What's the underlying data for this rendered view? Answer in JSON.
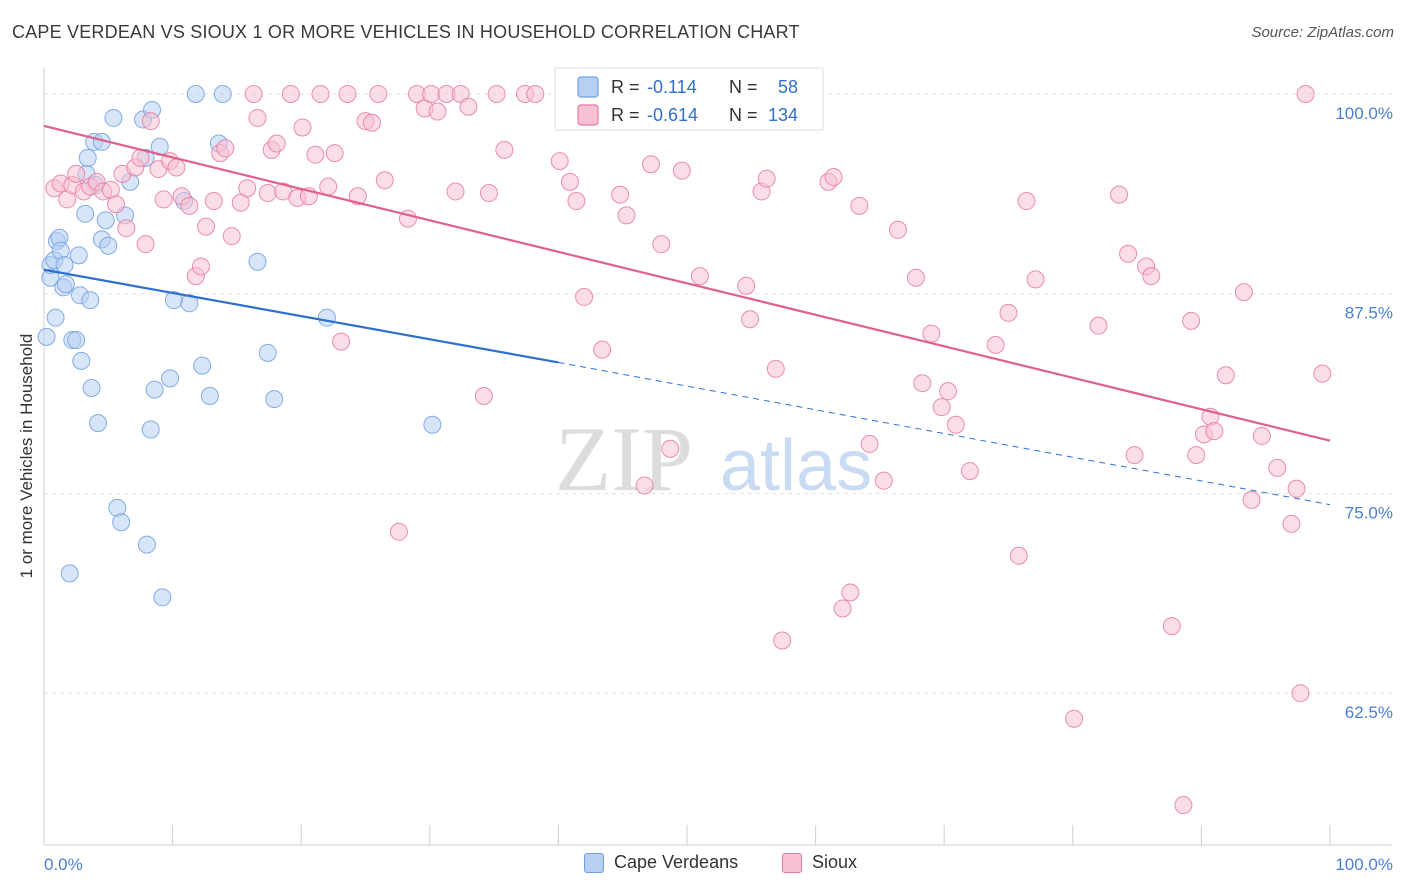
{
  "title": "CAPE VERDEAN VS SIOUX 1 OR MORE VEHICLES IN HOUSEHOLD CORRELATION CHART",
  "source": "Source: ZipAtlas.com",
  "watermark": {
    "zip": "ZIP",
    "atlas": "atlas"
  },
  "chart_data": {
    "type": "scatter",
    "xlabel": "",
    "ylabel": "1 or more Vehicles in Household",
    "xlim": [
      0,
      100
    ],
    "ylim": [
      53,
      101.5
    ],
    "x_tick_labels": [
      "0.0%",
      "100.0%"
    ],
    "y_ticks": [
      62.5,
      75.0,
      87.5,
      100.0
    ],
    "y_tick_labels": [
      "62.5%",
      "75.0%",
      "87.5%",
      "100.0%"
    ],
    "grid": true,
    "legend_position": "top-center",
    "series": [
      {
        "name": "Cape Verdeans",
        "color": "#6f9fe0",
        "fill": "#b7d0f2",
        "stats": {
          "r_label": "R =",
          "r": "-0.114",
          "n_label": "N =",
          "n": "58"
        },
        "trend": {
          "x0": 0,
          "y0": 89.0,
          "x1": 40,
          "y1": 83.2,
          "x_dash_end": 100,
          "y_dash_end": 74.3
        },
        "points": [
          [
            0.2,
            84.8
          ],
          [
            0.5,
            88.5
          ],
          [
            0.5,
            89.3
          ],
          [
            0.8,
            89.6
          ],
          [
            0.9,
            86.0
          ],
          [
            1.0,
            90.8
          ],
          [
            1.2,
            91.0
          ],
          [
            1.3,
            90.2
          ],
          [
            1.5,
            87.9
          ],
          [
            1.6,
            89.3
          ],
          [
            1.7,
            88.1
          ],
          [
            2.0,
            70.0
          ],
          [
            2.2,
            84.6
          ],
          [
            2.5,
            84.6
          ],
          [
            2.7,
            89.9
          ],
          [
            2.8,
            87.4
          ],
          [
            2.9,
            83.3
          ],
          [
            3.2,
            92.5
          ],
          [
            3.3,
            95.0
          ],
          [
            3.4,
            96.0
          ],
          [
            3.6,
            87.1
          ],
          [
            3.7,
            81.6
          ],
          [
            3.9,
            97.0
          ],
          [
            4.0,
            94.3
          ],
          [
            4.2,
            79.4
          ],
          [
            4.5,
            90.9
          ],
          [
            4.5,
            97.0
          ],
          [
            4.8,
            92.1
          ],
          [
            5.0,
            90.5
          ],
          [
            5.4,
            98.5
          ],
          [
            5.7,
            74.1
          ],
          [
            6.0,
            73.2
          ],
          [
            6.3,
            92.4
          ],
          [
            6.7,
            94.5
          ],
          [
            7.7,
            98.4
          ],
          [
            7.9,
            96.0
          ],
          [
            8.0,
            71.8
          ],
          [
            8.3,
            79.0
          ],
          [
            8.4,
            99.0
          ],
          [
            8.6,
            81.5
          ],
          [
            9.0,
            96.7
          ],
          [
            9.2,
            68.5
          ],
          [
            9.8,
            82.2
          ],
          [
            10.1,
            87.1
          ],
          [
            10.9,
            93.3
          ],
          [
            11.3,
            86.9
          ],
          [
            11.8,
            100.0
          ],
          [
            12.3,
            83.0
          ],
          [
            12.9,
            81.1
          ],
          [
            13.6,
            96.9
          ],
          [
            13.9,
            100.0
          ],
          [
            16.6,
            89.5
          ],
          [
            17.4,
            83.8
          ],
          [
            17.9,
            80.9
          ],
          [
            22.0,
            86.0
          ],
          [
            30.2,
            79.3
          ]
        ]
      },
      {
        "name": "Sioux",
        "color": "#e77aa0",
        "fill": "#f7c1d3",
        "stats": {
          "r_label": "R =",
          "r": "-0.614",
          "n_label": "N =",
          "n": "134"
        },
        "trend": {
          "x0": 0,
          "y0": 98.0,
          "x1": 100,
          "y1": 78.3
        },
        "points": [
          [
            0.8,
            94.1
          ],
          [
            1.3,
            94.4
          ],
          [
            1.8,
            93.4
          ],
          [
            2.2,
            94.3
          ],
          [
            2.5,
            95.0
          ],
          [
            3.1,
            93.9
          ],
          [
            3.6,
            94.2
          ],
          [
            4.1,
            94.5
          ],
          [
            4.6,
            93.9
          ],
          [
            5.2,
            94.0
          ],
          [
            5.6,
            93.1
          ],
          [
            6.1,
            95.0
          ],
          [
            6.4,
            91.6
          ],
          [
            7.1,
            95.4
          ],
          [
            7.5,
            96.0
          ],
          [
            7.9,
            90.6
          ],
          [
            8.3,
            98.3
          ],
          [
            8.9,
            95.3
          ],
          [
            9.3,
            93.4
          ],
          [
            9.8,
            95.8
          ],
          [
            10.3,
            95.4
          ],
          [
            10.7,
            93.6
          ],
          [
            11.3,
            93.0
          ],
          [
            11.8,
            88.6
          ],
          [
            12.2,
            89.2
          ],
          [
            12.6,
            91.7
          ],
          [
            13.2,
            93.3
          ],
          [
            13.7,
            96.3
          ],
          [
            14.1,
            96.6
          ],
          [
            14.6,
            91.1
          ],
          [
            15.3,
            93.2
          ],
          [
            15.8,
            94.1
          ],
          [
            16.3,
            100.0
          ],
          [
            16.6,
            98.5
          ],
          [
            17.4,
            93.8
          ],
          [
            17.7,
            96.5
          ],
          [
            18.1,
            96.9
          ],
          [
            18.6,
            93.9
          ],
          [
            19.2,
            100.0
          ],
          [
            19.7,
            93.5
          ],
          [
            20.1,
            97.9
          ],
          [
            20.6,
            93.6
          ],
          [
            21.1,
            96.2
          ],
          [
            21.5,
            100.0
          ],
          [
            22.1,
            94.2
          ],
          [
            22.6,
            96.3
          ],
          [
            23.1,
            84.5
          ],
          [
            23.6,
            100.0
          ],
          [
            24.4,
            93.6
          ],
          [
            25.0,
            98.3
          ],
          [
            25.5,
            98.2
          ],
          [
            26.0,
            100.0
          ],
          [
            26.5,
            94.6
          ],
          [
            27.6,
            72.6
          ],
          [
            28.3,
            92.2
          ],
          [
            29.0,
            100.0
          ],
          [
            29.6,
            99.1
          ],
          [
            30.1,
            100.0
          ],
          [
            30.6,
            98.9
          ],
          [
            31.3,
            100.0
          ],
          [
            32.0,
            93.9
          ],
          [
            32.4,
            100.0
          ],
          [
            33.0,
            99.2
          ],
          [
            34.2,
            81.1
          ],
          [
            34.6,
            93.8
          ],
          [
            35.2,
            100.0
          ],
          [
            35.8,
            96.5
          ],
          [
            37.4,
            100.0
          ],
          [
            38.2,
            100.0
          ],
          [
            40.1,
            95.8
          ],
          [
            40.9,
            94.5
          ],
          [
            41.4,
            93.3
          ],
          [
            42.0,
            87.3
          ],
          [
            43.4,
            84.0
          ],
          [
            44.8,
            93.7
          ],
          [
            45.3,
            92.4
          ],
          [
            46.7,
            75.5
          ],
          [
            47.2,
            95.6
          ],
          [
            48.0,
            90.6
          ],
          [
            48.7,
            77.8
          ],
          [
            49.6,
            95.2
          ],
          [
            51.0,
            88.6
          ],
          [
            54.6,
            88.0
          ],
          [
            54.9,
            85.9
          ],
          [
            55.8,
            93.9
          ],
          [
            56.2,
            94.7
          ],
          [
            56.9,
            82.8
          ],
          [
            57.4,
            65.8
          ],
          [
            61.0,
            94.5
          ],
          [
            61.4,
            94.8
          ],
          [
            62.1,
            67.8
          ],
          [
            62.7,
            68.8
          ],
          [
            63.4,
            93.0
          ],
          [
            64.2,
            78.1
          ],
          [
            65.3,
            75.8
          ],
          [
            66.4,
            91.5
          ],
          [
            67.8,
            88.5
          ],
          [
            68.3,
            81.9
          ],
          [
            69.0,
            85.0
          ],
          [
            69.8,
            80.4
          ],
          [
            70.3,
            81.4
          ],
          [
            70.9,
            79.3
          ],
          [
            72.0,
            76.4
          ],
          [
            74.0,
            84.3
          ],
          [
            75.0,
            86.3
          ],
          [
            75.8,
            71.1
          ],
          [
            76.4,
            93.3
          ],
          [
            77.1,
            88.4
          ],
          [
            80.1,
            60.9
          ],
          [
            82.0,
            85.5
          ],
          [
            83.6,
            93.7
          ],
          [
            84.3,
            90.0
          ],
          [
            84.8,
            77.4
          ],
          [
            85.7,
            89.2
          ],
          [
            86.1,
            88.6
          ],
          [
            87.7,
            66.7
          ],
          [
            88.6,
            55.5
          ],
          [
            89.2,
            85.8
          ],
          [
            89.6,
            77.4
          ],
          [
            90.2,
            78.7
          ],
          [
            90.7,
            79.8
          ],
          [
            91.0,
            78.9
          ],
          [
            91.9,
            82.4
          ],
          [
            93.3,
            87.6
          ],
          [
            93.9,
            74.6
          ],
          [
            94.7,
            78.6
          ],
          [
            95.9,
            76.6
          ],
          [
            97.0,
            73.1
          ],
          [
            97.4,
            75.3
          ],
          [
            97.7,
            62.5
          ],
          [
            98.1,
            100.0
          ],
          [
            99.4,
            82.5
          ]
        ]
      }
    ]
  }
}
